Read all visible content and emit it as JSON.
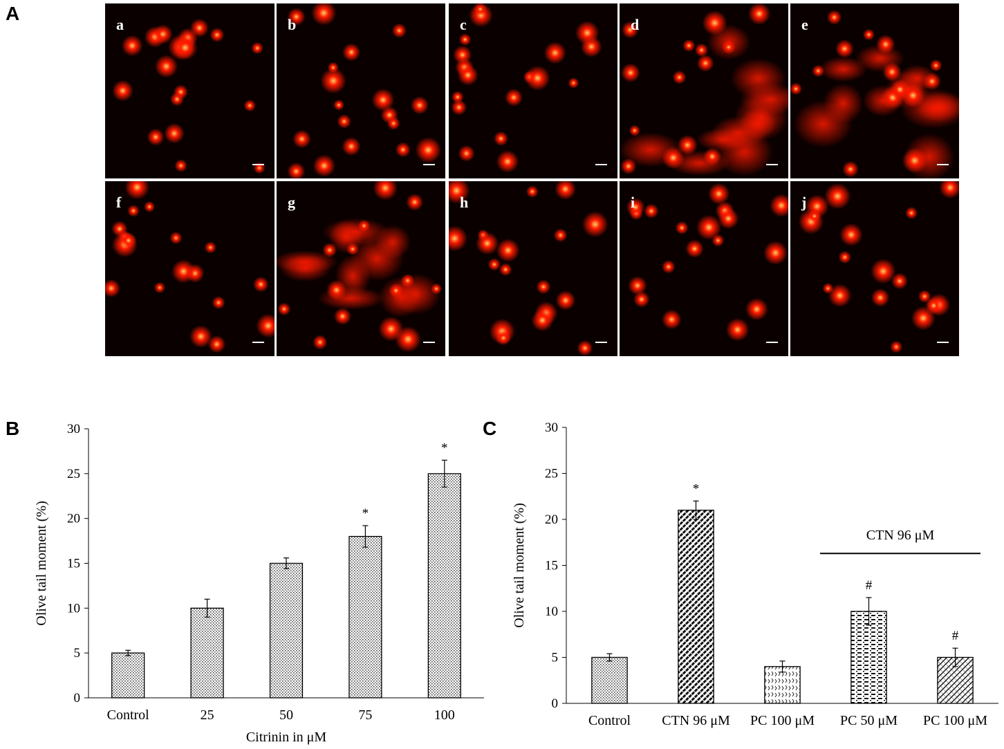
{
  "panel_labels": {
    "a": "A",
    "b": "B",
    "c": "C"
  },
  "micrographs": {
    "labels": [
      "a",
      "b",
      "c",
      "d",
      "e",
      "f",
      "g",
      "h",
      "i",
      "j"
    ],
    "background": "#0a0000",
    "cell_color": "#ff1a00",
    "highlight_color": "#ffd060"
  },
  "chart_data": [
    {
      "type": "bar",
      "panel": "B",
      "title": "",
      "xlabel": "Citrinin in μM",
      "ylabel": "Olive tail moment (%)",
      "categories": [
        "Control",
        "25",
        "50",
        "75",
        "100"
      ],
      "values": [
        5,
        10,
        15,
        18,
        25
      ],
      "errors": [
        0.3,
        1.0,
        0.6,
        1.2,
        1.5
      ],
      "significance": [
        "",
        "",
        "",
        "*",
        "*"
      ],
      "ylim": [
        0,
        30
      ],
      "yticks": [
        "0",
        "5",
        "10",
        "15",
        "20",
        "25",
        "30"
      ],
      "grid": false,
      "pattern": "dots"
    },
    {
      "type": "bar",
      "panel": "C",
      "title": "",
      "xlabel": "",
      "ylabel": "Olive tail moment (%)",
      "categories": [
        "Control",
        "CTN 96 μM",
        "PC 100 μM",
        "PC 50 μM",
        "PC 100 μM"
      ],
      "values": [
        5,
        21,
        4,
        10,
        5
      ],
      "errors": [
        0.4,
        1.0,
        0.6,
        1.5,
        1.0
      ],
      "significance": [
        "",
        "*",
        "",
        "#",
        "#"
      ],
      "patterns": [
        "dots",
        "diag-dense",
        "wave",
        "dashes",
        "crosshatch"
      ],
      "ylim": [
        0,
        30
      ],
      "yticks": [
        "0",
        "5",
        "10",
        "15",
        "20",
        "25",
        "30"
      ],
      "grid": false,
      "bracket_label": "CTN 96 μM"
    }
  ]
}
